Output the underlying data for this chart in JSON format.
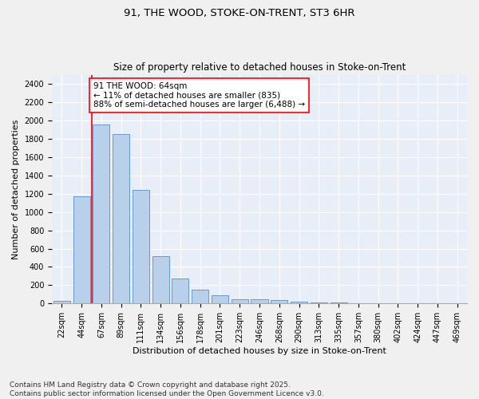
{
  "title": "91, THE WOOD, STOKE-ON-TRENT, ST3 6HR",
  "subtitle": "Size of property relative to detached houses in Stoke-on-Trent",
  "xlabel": "Distribution of detached houses by size in Stoke-on-Trent",
  "ylabel": "Number of detached properties",
  "bar_color": "#b8d0ea",
  "bar_edge_color": "#6699cc",
  "background_color": "#e8eef8",
  "grid_color": "#ffffff",
  "categories": [
    "22sqm",
    "44sqm",
    "67sqm",
    "89sqm",
    "111sqm",
    "134sqm",
    "156sqm",
    "178sqm",
    "201sqm",
    "223sqm",
    "246sqm",
    "268sqm",
    "290sqm",
    "313sqm",
    "335sqm",
    "357sqm",
    "380sqm",
    "402sqm",
    "424sqm",
    "447sqm",
    "469sqm"
  ],
  "values": [
    30,
    1170,
    1960,
    1850,
    1240,
    515,
    275,
    155,
    90,
    50,
    45,
    40,
    20,
    15,
    10,
    5,
    5,
    5,
    5,
    5,
    2
  ],
  "ylim": [
    0,
    2500
  ],
  "yticks": [
    0,
    200,
    400,
    600,
    800,
    1000,
    1200,
    1400,
    1600,
    1800,
    2000,
    2200,
    2400
  ],
  "annotation_text": "91 THE WOOD: 64sqm\n← 11% of detached houses are smaller (835)\n88% of semi-detached houses are larger (6,488) →",
  "annotation_box_color": "white",
  "annotation_border_color": "red",
  "vline_color": "red",
  "footnote": "Contains HM Land Registry data © Crown copyright and database right 2025.\nContains public sector information licensed under the Open Government Licence v3.0.",
  "title_fontsize": 9.5,
  "subtitle_fontsize": 8.5,
  "ylabel_fontsize": 8,
  "xlabel_fontsize": 8,
  "annotation_fontsize": 7.5,
  "footnote_fontsize": 6.5,
  "tick_fontsize": 7
}
